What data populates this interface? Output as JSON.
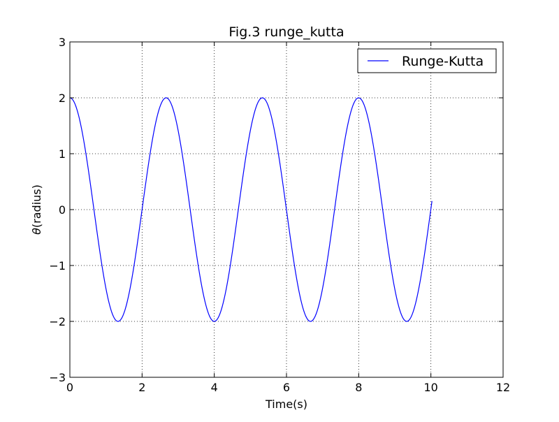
{
  "chart_data": {
    "type": "line",
    "title": "Fig.3 runge_kutta",
    "xlabel": "Time(s)",
    "ylabel_symbol": "θ",
    "ylabel_text": "(radius)",
    "xlim": [
      0,
      12
    ],
    "ylim": [
      -3,
      3
    ],
    "xticks": [
      0,
      2,
      4,
      6,
      8,
      10,
      12
    ],
    "yticks": [
      -3,
      -2,
      -1,
      0,
      1,
      2,
      3
    ],
    "xtick_labels": [
      "0",
      "2",
      "4",
      "6",
      "8",
      "10",
      "12"
    ],
    "ytick_labels": [
      "−3",
      "−2",
      "−1",
      "0",
      "1",
      "2",
      "3"
    ],
    "grid": true,
    "legend_position": "top-right",
    "series": [
      {
        "name": "Runge-Kutta",
        "color": "#0000ff",
        "amplitude": 2,
        "period": 2.666,
        "x_start": 0,
        "x_end": 10.03
      }
    ]
  }
}
